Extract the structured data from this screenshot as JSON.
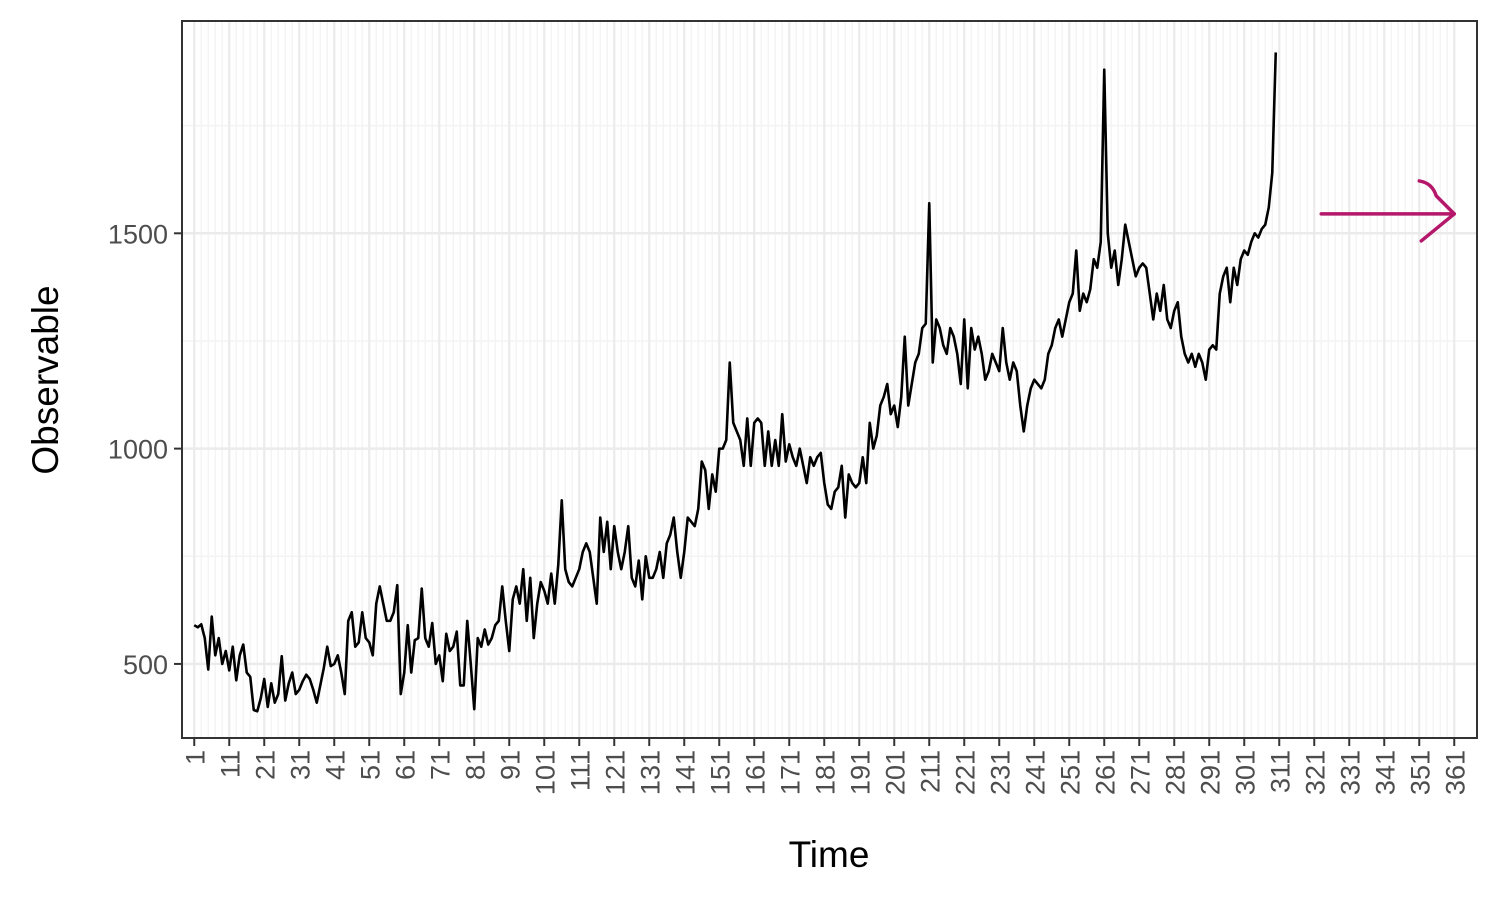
{
  "chart_data": {
    "type": "line",
    "title": "",
    "xlabel": "Time",
    "ylabel": "Observable",
    "xlim": [
      -2.5,
      367.5
    ],
    "ylim": [
      328,
      1993
    ],
    "x_ticks": [
      1,
      11,
      21,
      31,
      41,
      51,
      61,
      71,
      81,
      91,
      101,
      111,
      121,
      131,
      141,
      151,
      161,
      171,
      181,
      191,
      201,
      211,
      221,
      231,
      241,
      251,
      261,
      271,
      281,
      291,
      301,
      311,
      321,
      331,
      341,
      351,
      361
    ],
    "y_ticks": [
      500,
      1000,
      1500
    ],
    "grid": true,
    "legend": "none",
    "colors": {
      "series": "#000000",
      "arrow": "#b5176a",
      "grid_major": "#ebebeb",
      "grid_minor": "#f3f3f3",
      "panel_border": "#333333"
    },
    "annotations": [
      {
        "type": "arrow",
        "direction": "right",
        "from_x": 323,
        "to_x": 361,
        "y": 1545
      }
    ],
    "series": [
      {
        "x_start": 1,
        "values": [
          590,
          585,
          592,
          560,
          487,
          610,
          520,
          560,
          500,
          530,
          485,
          540,
          462,
          520,
          545,
          480,
          470,
          393,
          390,
          420,
          465,
          400,
          455,
          410,
          430,
          518,
          415,
          455,
          480,
          430,
          440,
          460,
          475,
          465,
          440,
          410,
          450,
          490,
          540,
          495,
          500,
          520,
          480,
          430,
          600,
          620,
          540,
          550,
          620,
          560,
          550,
          520,
          640,
          680,
          640,
          600,
          600,
          620,
          683,
          430,
          480,
          590,
          480,
          555,
          560,
          675,
          560,
          540,
          595,
          500,
          520,
          460,
          570,
          530,
          540,
          575,
          450,
          450,
          600,
          500,
          395,
          560,
          540,
          580,
          545,
          560,
          590,
          600,
          680,
          600,
          530,
          650,
          680,
          640,
          720,
          600,
          700,
          560,
          640,
          690,
          670,
          640,
          710,
          640,
          730,
          880,
          720,
          690,
          680,
          700,
          720,
          760,
          780,
          760,
          700,
          640,
          840,
          760,
          830,
          720,
          820,
          760,
          720,
          760,
          820,
          700,
          680,
          740,
          650,
          750,
          700,
          700,
          720,
          760,
          700,
          780,
          800,
          840,
          760,
          700,
          760,
          840,
          830,
          820,
          860,
          970,
          950,
          860,
          940,
          900,
          1000,
          1000,
          1020,
          1200,
          1060,
          1040,
          1020,
          960,
          1070,
          960,
          1060,
          1070,
          1060,
          960,
          1040,
          960,
          1020,
          960,
          1080,
          970,
          1010,
          980,
          960,
          1000,
          960,
          920,
          980,
          960,
          980,
          990,
          920,
          870,
          860,
          900,
          910,
          960,
          840,
          940,
          920,
          910,
          920,
          980,
          920,
          1060,
          1000,
          1030,
          1100,
          1120,
          1150,
          1080,
          1100,
          1050,
          1120,
          1260,
          1100,
          1150,
          1200,
          1220,
          1280,
          1290,
          1570,
          1200,
          1300,
          1280,
          1240,
          1220,
          1280,
          1260,
          1220,
          1150,
          1300,
          1140,
          1280,
          1230,
          1260,
          1220,
          1160,
          1180,
          1220,
          1200,
          1180,
          1280,
          1200,
          1160,
          1200,
          1180,
          1100,
          1040,
          1100,
          1140,
          1160,
          1150,
          1140,
          1160,
          1220,
          1240,
          1280,
          1300,
          1260,
          1300,
          1340,
          1360,
          1460,
          1320,
          1360,
          1340,
          1370,
          1440,
          1420,
          1480,
          1880,
          1500,
          1420,
          1460,
          1380,
          1440,
          1520,
          1480,
          1440,
          1400,
          1420,
          1430,
          1420,
          1360,
          1300,
          1360,
          1320,
          1380,
          1300,
          1280,
          1320,
          1340,
          1260,
          1220,
          1200,
          1220,
          1190,
          1220,
          1200,
          1160,
          1230,
          1240,
          1230,
          1360,
          1400,
          1420,
          1340,
          1420,
          1380,
          1440,
          1460,
          1450,
          1480,
          1500,
          1490,
          1510,
          1520,
          1560,
          1640,
          1920
        ]
      }
    ]
  }
}
